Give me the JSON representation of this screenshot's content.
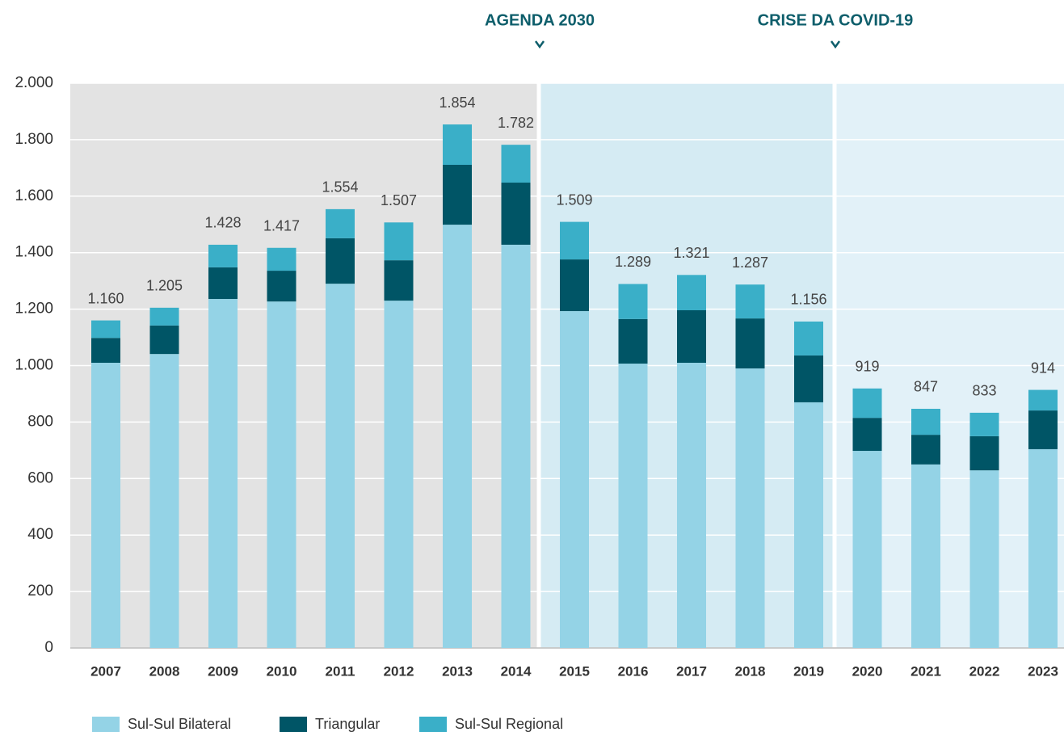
{
  "chart_data": {
    "type": "stacked_bar",
    "categories": [
      "2007",
      "2008",
      "2009",
      "2010",
      "2011",
      "2012",
      "2013",
      "2014",
      "2015",
      "2016",
      "2017",
      "2018",
      "2019",
      "2020",
      "2021",
      "2022",
      "2023"
    ],
    "series": [
      {
        "name": "Sul-Sul Bilateral",
        "color": "#94d3e6",
        "values": [
          1010,
          1041,
          1236,
          1227,
          1290,
          1230,
          1499,
          1428,
          1193,
          1007,
          1010,
          990,
          870,
          698,
          650,
          629,
          704
        ]
      },
      {
        "name": "Triangular",
        "color": "#005566",
        "values": [
          88,
          101,
          112,
          109,
          161,
          143,
          212,
          220,
          183,
          158,
          186,
          177,
          166,
          117,
          105,
          121,
          137
        ]
      },
      {
        "name": "Sul-Sul Regional",
        "color": "#3aafc8",
        "values": [
          62,
          63,
          80,
          81,
          103,
          134,
          143,
          134,
          133,
          124,
          125,
          120,
          120,
          104,
          92,
          83,
          73
        ]
      }
    ],
    "totals": {
      "values": [
        1160,
        1205,
        1428,
        1417,
        1554,
        1507,
        1854,
        1782,
        1509,
        1289,
        1321,
        1287,
        1156,
        919,
        847,
        833,
        914
      ],
      "value_labels": [
        "1.160",
        "1.205",
        "1.428",
        "1.417",
        "1.554",
        "1.507",
        "1.854",
        "1.782",
        "1.509",
        "1.289",
        "1.321",
        "1.287",
        "1.156",
        "919",
        "847",
        "833",
        "914"
      ]
    },
    "ylim": [
      0,
      2000
    ],
    "yticks": [
      0,
      200,
      400,
      600,
      800,
      {
        "value": 1000,
        "label": "1.000"
      },
      {
        "value": 1200,
        "label": "1.200"
      },
      {
        "value": 1400,
        "label": "1.400"
      },
      {
        "value": 1600,
        "label": "1.600"
      },
      {
        "value": 1800,
        "label": "1.800"
      },
      {
        "value": 2000,
        "label": "2.000"
      }
    ],
    "grid": true,
    "annotations": [
      {
        "text": "AGENDA 2030"
      },
      {
        "text": "CRISE DA COVID-19"
      }
    ]
  }
}
